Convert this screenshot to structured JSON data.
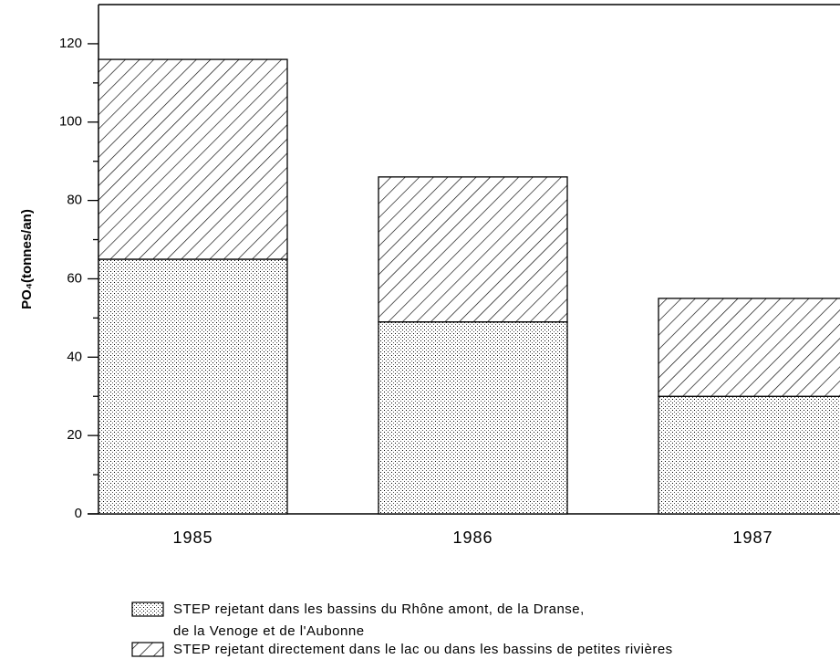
{
  "chart_data": {
    "type": "stacked_bar",
    "ylabel": "PO₄(tonnes/an)",
    "categories": [
      "1985",
      "1986",
      "1987"
    ],
    "series": [
      {
        "name": "STEP rejetant dans les bassins du Rhône amont, de la Dranse,\nde la Venoge et de l'Aubonne",
        "color": "dots",
        "values": [
          65,
          49,
          30
        ]
      },
      {
        "name": "STEP rejetant directement dans le lac ou dans les bassins de petites rivières",
        "color": "hatch",
        "values": [
          51,
          37,
          25
        ]
      }
    ],
    "ylim": [
      0,
      130
    ],
    "yticks": [
      0,
      20,
      40,
      60,
      80,
      100,
      120
    ],
    "yticks_minor": [
      10,
      30,
      50,
      70,
      90,
      110
    ]
  }
}
